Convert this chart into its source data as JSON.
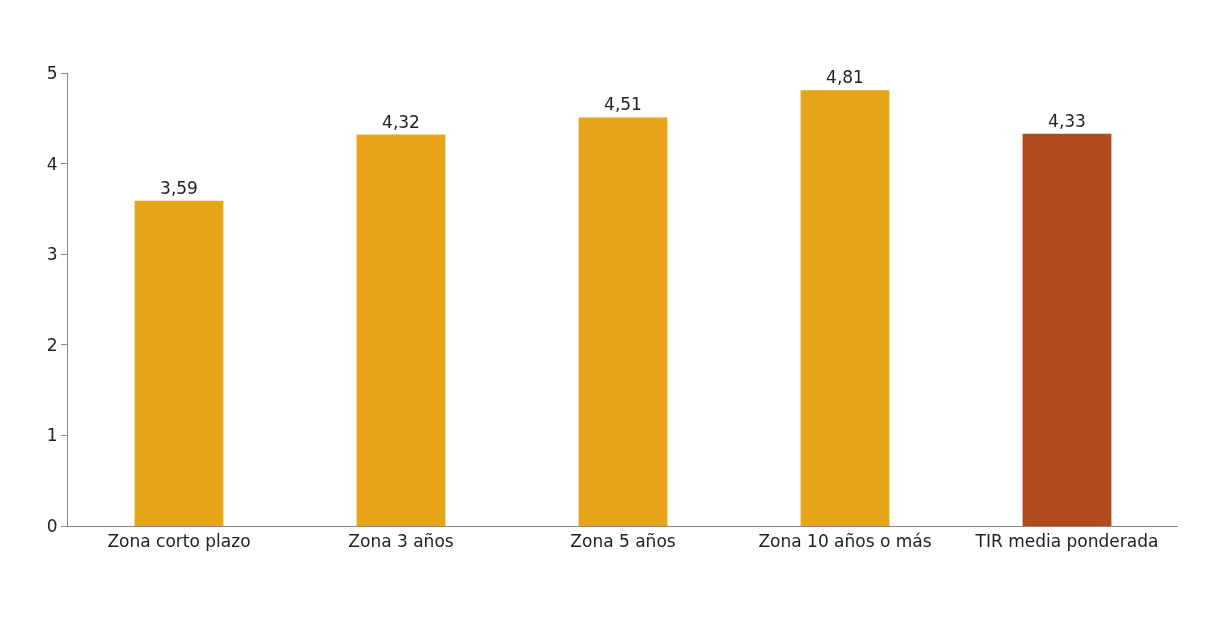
{
  "chart_data": {
    "type": "bar",
    "categories": [
      "Zona corto plazo",
      "Zona 3 años",
      "Zona 5 años",
      "Zona 10 años o más",
      "TIR media ponderada"
    ],
    "values": [
      3.59,
      4.32,
      4.51,
      4.81,
      4.33
    ],
    "value_labels": [
      "3,59",
      "4,32",
      "4,51",
      "4,81",
      "4,33"
    ],
    "colors": [
      "#e6a418",
      "#e6a418",
      "#e6a418",
      "#e6a418",
      "#b04b20"
    ],
    "ylim": [
      0,
      5
    ],
    "yticks": [
      0,
      1,
      2,
      3,
      4,
      5
    ],
    "legend": false
  }
}
